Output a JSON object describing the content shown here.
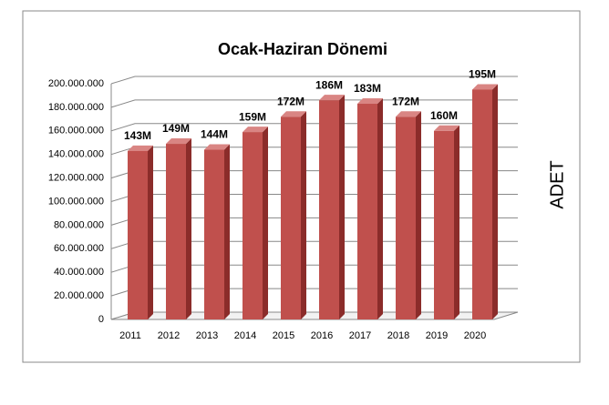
{
  "chart_data": {
    "type": "bar3d",
    "title": "Ocak-Haziran Dönemi",
    "y_label": "ADET",
    "categories": [
      "2011",
      "2012",
      "2013",
      "2014",
      "2015",
      "2016",
      "2017",
      "2018",
      "2019",
      "2020"
    ],
    "values": [
      143000000,
      149000000,
      144000000,
      159000000,
      172000000,
      186000000,
      183000000,
      172000000,
      160000000,
      195000000
    ],
    "value_labels": [
      "143M",
      "149M",
      "144M",
      "159M",
      "172M",
      "186M",
      "183M",
      "172M",
      "160M",
      "195M"
    ],
    "color": "#c0504d",
    "ylim": [
      0,
      200000000
    ],
    "yticks": [
      0,
      {
        "value": 20000000,
        "label": "20.000.000"
      },
      {
        "value": 40000000,
        "label": "40.000.000"
      },
      {
        "value": 60000000,
        "label": "60.000.000"
      },
      {
        "value": 80000000,
        "label": "80.000.000"
      },
      {
        "value": 100000000,
        "label": "100.000.000"
      },
      {
        "value": 120000000,
        "label": "120.000.000"
      },
      {
        "value": 140000000,
        "label": "140.000.000"
      },
      {
        "value": 160000000,
        "label": "160.000.000"
      },
      {
        "value": 180000000,
        "label": "180.000.000"
      },
      {
        "value": 200000000,
        "label": "200.000.000"
      }
    ],
    "grid": true
  }
}
